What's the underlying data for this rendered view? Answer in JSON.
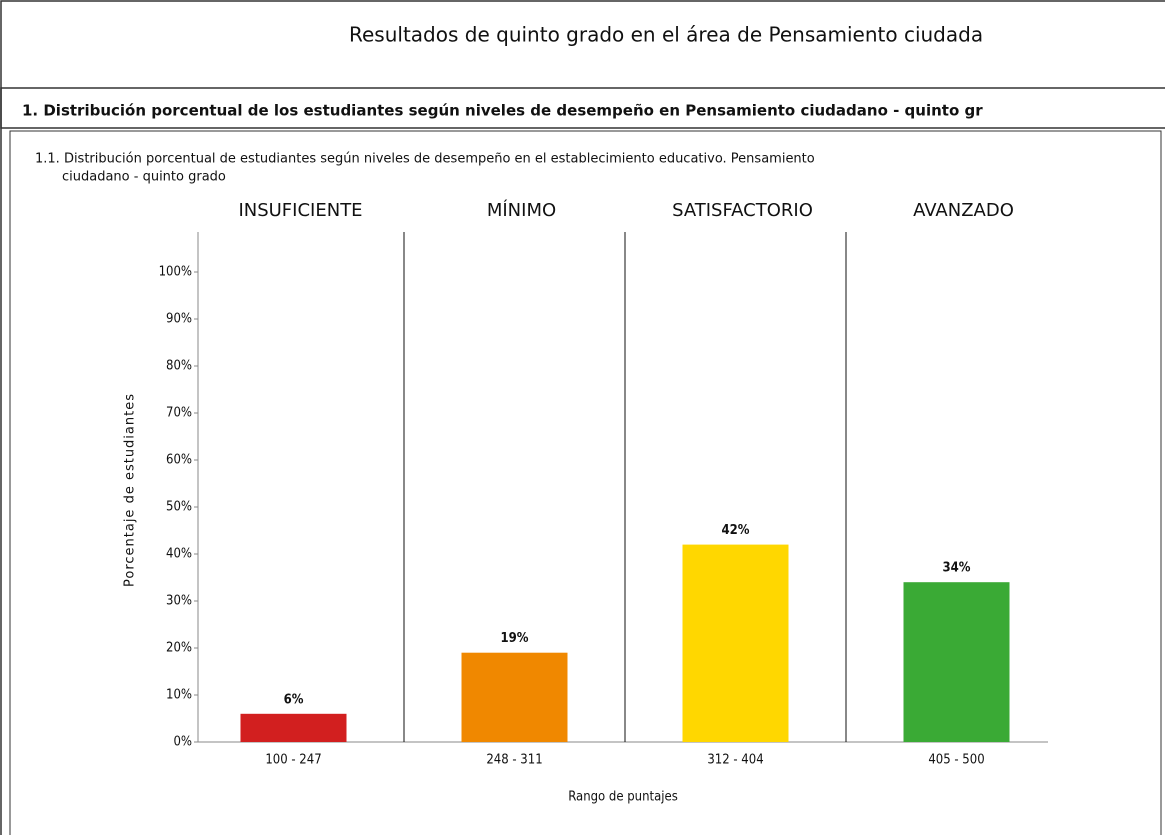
{
  "header": {
    "title": "Resultados de quinto grado en el área de Pensamiento ciudada",
    "section": "1. Distribución porcentual de los estudiantes según niveles de desempeño en Pensamiento ciudadano - quinto gr"
  },
  "chart_data": {
    "type": "bar",
    "title": [
      "1.1. Distribución porcentual de estudiantes según niveles de desempeño en el establecimiento educativo. Pensamiento",
      "ciudadano - quinto grado"
    ],
    "levels": [
      "INSUFICIENTE",
      "MÍNIMO",
      "SATISFACTORIO",
      "AVANZADO"
    ],
    "categories": [
      "100 - 247",
      "248 - 311",
      "312 - 404",
      "405 - 500"
    ],
    "values": [
      6,
      19,
      42,
      34
    ],
    "value_labels": [
      "6%",
      "19%",
      "42%",
      "34%"
    ],
    "colors": [
      "#d21f1f",
      "#f08800",
      "#ffd700",
      "#3aaa35"
    ],
    "ylim": [
      0,
      100
    ],
    "yticks": [
      {
        "value": 0,
        "label": "0%"
      },
      {
        "value": 10,
        "label": "10%"
      },
      {
        "value": 20,
        "label": "20%"
      },
      {
        "value": 30,
        "label": "30%"
      },
      {
        "value": 40,
        "label": "40%"
      },
      {
        "value": 50,
        "label": "50%"
      },
      {
        "value": 60,
        "label": "60%"
      },
      {
        "value": 70,
        "label": "70%"
      },
      {
        "value": 80,
        "label": "80%"
      },
      {
        "value": 90,
        "label": "90%"
      },
      {
        "value": 100,
        "label": "100%"
      }
    ],
    "xlabel": "Rango de puntajes",
    "ylabel": "Porcentaje de estudiantes"
  }
}
